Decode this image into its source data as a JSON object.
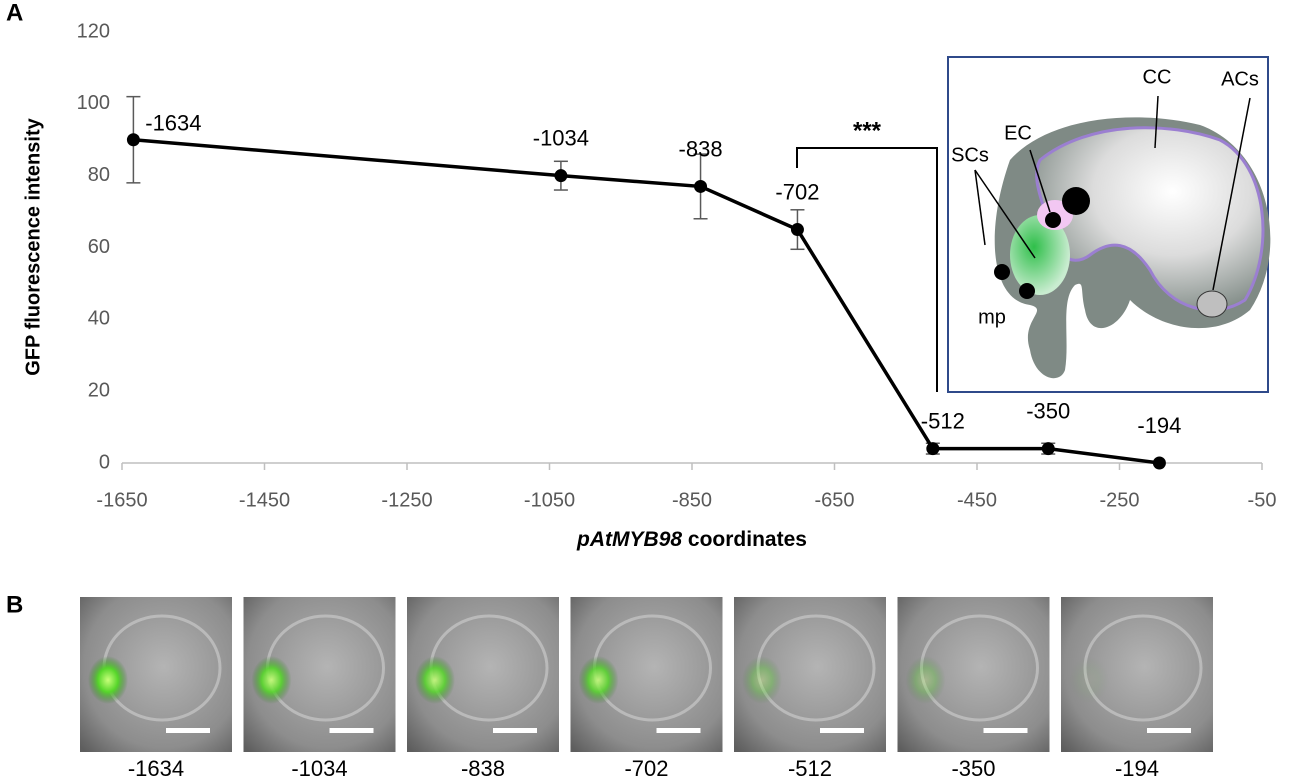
{
  "chart_data": {
    "type": "line",
    "panel_label": "A",
    "ylabel": "GFP fluorescence intensity",
    "xlabel": {
      "italic": "pAtMYB98",
      "text": "coordinates"
    },
    "x": [
      -1634,
      -1034,
      -838,
      -702,
      -512,
      -350,
      -194
    ],
    "series": [
      {
        "name": "GFP",
        "color": "#000000",
        "values": [
          90,
          80,
          77,
          65,
          4,
          4,
          0
        ],
        "errors": [
          12,
          4,
          9,
          5.5,
          1.5,
          1.5,
          0
        ]
      }
    ],
    "xlim": [
      -1650,
      -50
    ],
    "xticks": [
      -1650,
      -1450,
      -1250,
      -1050,
      -850,
      -650,
      -450,
      -250,
      -50
    ],
    "ylim": [
      0,
      120
    ],
    "yticks": [
      0,
      20,
      40,
      60,
      80,
      100,
      120
    ],
    "annotation": "***",
    "inset": {
      "labels": [
        "CC",
        "EC",
        "SCs",
        "ACs",
        "mp"
      ]
    }
  },
  "images": {
    "panel_label": "B",
    "labels": [
      "-1634",
      "-1034",
      "-838",
      "-702",
      "-512",
      "-350",
      "-194"
    ],
    "green": [
      1,
      0.9,
      0.85,
      0.85,
      0.35,
      0.3,
      0.05
    ]
  }
}
